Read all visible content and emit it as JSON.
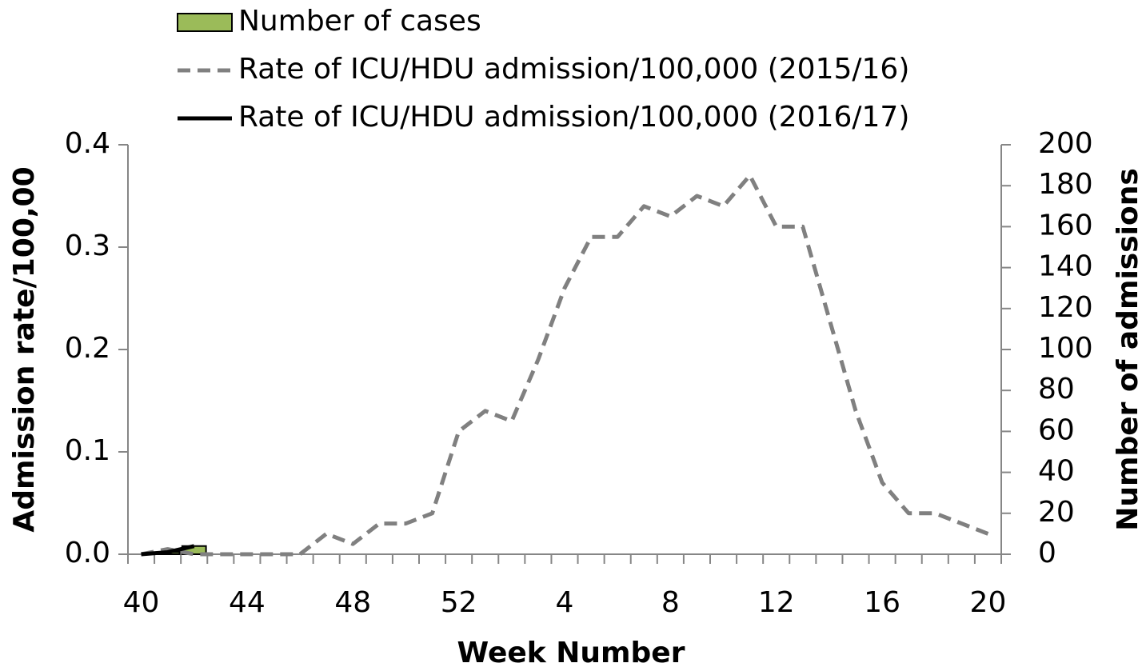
{
  "chart_data": {
    "type": "combo",
    "x_label": "Week Number",
    "y_label": "Admission rate/100,00",
    "y2_label": "Number of admissions",
    "categories": [
      "40",
      null,
      null,
      null,
      "44",
      null,
      null,
      null,
      "48",
      null,
      null,
      null,
      "52",
      null,
      null,
      null,
      "4",
      null,
      null,
      null,
      "8",
      null,
      null,
      null,
      "12",
      null,
      null,
      null,
      "16",
      null,
      null,
      null,
      "20"
    ],
    "ylim": [
      0,
      0.4
    ],
    "yticks": [
      {
        "value": 0,
        "label": "0.0"
      },
      0.1,
      0.2,
      0.3,
      0.4
    ],
    "y2lim": [
      0,
      200
    ],
    "y2ticks": [
      0,
      20,
      40,
      60,
      80,
      100,
      120,
      140,
      160,
      180,
      200
    ],
    "grid": false,
    "legend": "top",
    "series": [
      {
        "name": "Number of cases",
        "type": "bar",
        "axis": "y2",
        "color": "#9bbb59",
        "values": [
          0,
          1,
          4,
          null,
          null,
          null,
          null,
          null,
          null,
          null,
          null,
          null,
          null,
          null,
          null,
          null,
          null,
          null,
          null,
          null,
          null,
          null,
          null,
          null,
          null,
          null,
          null,
          null,
          null,
          null,
          null,
          null,
          null
        ]
      },
      {
        "name": "Rate of ICU/HDU admission/100,000 (2015/16)",
        "type": "line",
        "style": "dashed",
        "color": "#808080",
        "values": [
          0,
          0.005,
          0,
          0,
          0,
          0,
          0,
          0.02,
          0.01,
          0.03,
          0.03,
          0.04,
          0.12,
          0.14,
          0.13,
          0.19,
          0.26,
          0.31,
          0.31,
          0.34,
          0.33,
          0.35,
          0.34,
          0.37,
          0.32,
          0.32,
          0.23,
          0.14,
          0.07,
          0.04,
          0.04,
          0.03,
          0.02
        ]
      },
      {
        "name": "Rate of ICU/HDU admission/100,000 (2016/17)",
        "type": "line",
        "style": "solid",
        "color": "#000000",
        "values": [
          0,
          0.002,
          0.008,
          null,
          null,
          null,
          null,
          null,
          null,
          null,
          null,
          null,
          null,
          null,
          null,
          null,
          null,
          null,
          null,
          null,
          null,
          null,
          null,
          null,
          null,
          null,
          null,
          null,
          null,
          null,
          null,
          null,
          null
        ]
      }
    ]
  }
}
